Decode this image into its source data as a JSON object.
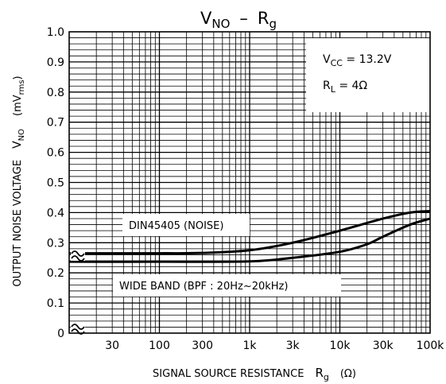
{
  "chart_data": {
    "type": "line",
    "title": {
      "main": "V",
      "main_sub": "NO",
      "sep": "–",
      "r": "R",
      "r_sub": "g"
    },
    "x_scale": "log",
    "xlim": [
      10,
      100000
    ],
    "ylim": [
      0,
      1.0
    ],
    "x_ticks": [
      {
        "value": 30,
        "label": "30"
      },
      {
        "value": 100,
        "label": "100"
      },
      {
        "value": 300,
        "label": "300"
      },
      {
        "value": 1000,
        "label": "1k"
      },
      {
        "value": 3000,
        "label": "3k"
      },
      {
        "value": 10000,
        "label": "10k"
      },
      {
        "value": 30000,
        "label": "30k"
      },
      {
        "value": 100000,
        "label": "100k"
      }
    ],
    "y_ticks": [
      {
        "value": 0,
        "label": "0"
      },
      {
        "value": 0.1,
        "label": "0.1"
      },
      {
        "value": 0.2,
        "label": "0.2"
      },
      {
        "value": 0.3,
        "label": "0.3"
      },
      {
        "value": 0.4,
        "label": "0.4"
      },
      {
        "value": 0.5,
        "label": "0.5"
      },
      {
        "value": 0.6,
        "label": "0.6"
      },
      {
        "value": 0.7,
        "label": "0.7"
      },
      {
        "value": 0.8,
        "label": "0.8"
      },
      {
        "value": 0.9,
        "label": "0.9"
      },
      {
        "value": 1.0,
        "label": "1.0"
      }
    ],
    "xlabel": {
      "text": "SIGNAL SOURCE RESISTANCE",
      "symbol": "R",
      "symbol_sub": "g",
      "unit": "(Ω)"
    },
    "ylabel": {
      "text": "OUTPUT NOISE VOLTAGE",
      "symbol": "V",
      "symbol_sub": "NO",
      "unit": "(mV",
      "unit_sub": "rms",
      "unit_close": ")"
    },
    "conditions": [
      {
        "main": "V",
        "sub": "CC",
        "rest": " = 13.2V"
      },
      {
        "main": "R",
        "sub": "L",
        "rest": " = 4Ω"
      }
    ],
    "grid": true,
    "series": [
      {
        "name": "DIN45405 (NOISE)",
        "points": [
          {
            "x": 10,
            "y": 0.265
          },
          {
            "x": 100,
            "y": 0.265
          },
          {
            "x": 300,
            "y": 0.266
          },
          {
            "x": 1000,
            "y": 0.275
          },
          {
            "x": 3000,
            "y": 0.3
          },
          {
            "x": 10000,
            "y": 0.34
          },
          {
            "x": 30000,
            "y": 0.38
          },
          {
            "x": 60000,
            "y": 0.4
          },
          {
            "x": 100000,
            "y": 0.405
          }
        ]
      },
      {
        "name": "WIDE BAND (BPF : 20Hz~20kHz)",
        "points": [
          {
            "x": 10,
            "y": 0.237
          },
          {
            "x": 100,
            "y": 0.237
          },
          {
            "x": 1000,
            "y": 0.238
          },
          {
            "x": 3000,
            "y": 0.25
          },
          {
            "x": 10000,
            "y": 0.27
          },
          {
            "x": 20000,
            "y": 0.295
          },
          {
            "x": 30000,
            "y": 0.32
          },
          {
            "x": 60000,
            "y": 0.36
          },
          {
            "x": 100000,
            "y": 0.38
          }
        ]
      }
    ]
  }
}
